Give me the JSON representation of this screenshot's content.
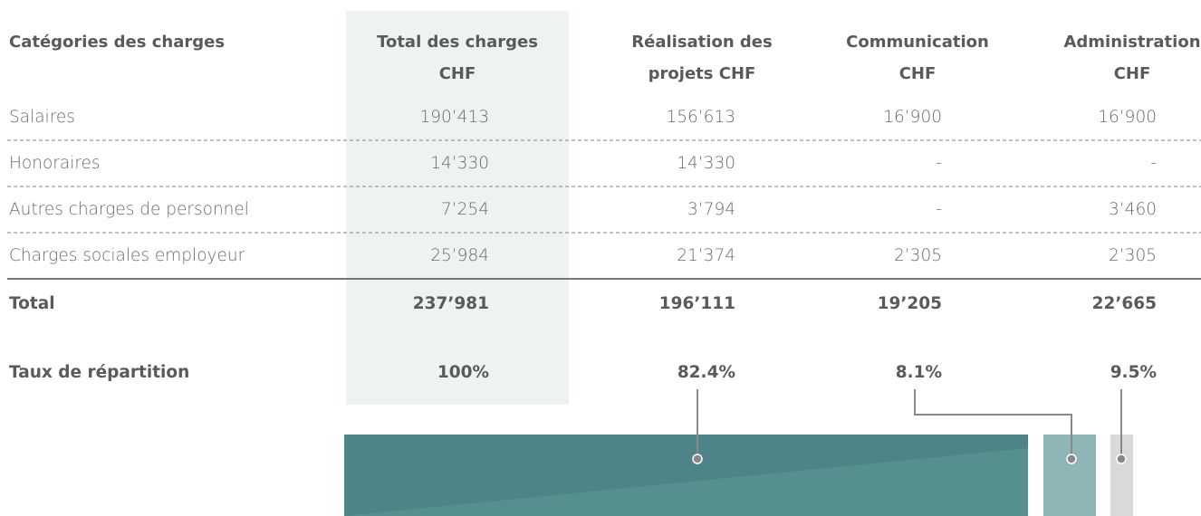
{
  "table": {
    "header": [
      [
        "Catégories des charges"
      ],
      [
        "Total des charges",
        "CHF"
      ],
      [
        "Réalisation des",
        "projets CHF"
      ],
      [
        "Communication",
        "CHF"
      ],
      [
        "Administration",
        "CHF"
      ]
    ],
    "rows": [
      [
        "Salaires",
        "190’413",
        "156’613",
        "16’900",
        "16’900"
      ],
      [
        "Honoraires",
        "14’330",
        "14’330",
        "-",
        "-"
      ],
      [
        "Autres charges de personnel",
        "7’254",
        "3’794",
        "-",
        "3’460"
      ],
      [
        "Charges sociales employeur",
        "25’984",
        "21’374",
        "2’305",
        "2’305"
      ]
    ],
    "total": [
      "Total",
      "237’981",
      "196’111",
      "19’205",
      "22’665"
    ],
    "rate": [
      "Taux de répartition",
      "100%",
      "82.4%",
      "8.1%",
      "9.5%"
    ]
  }
}
